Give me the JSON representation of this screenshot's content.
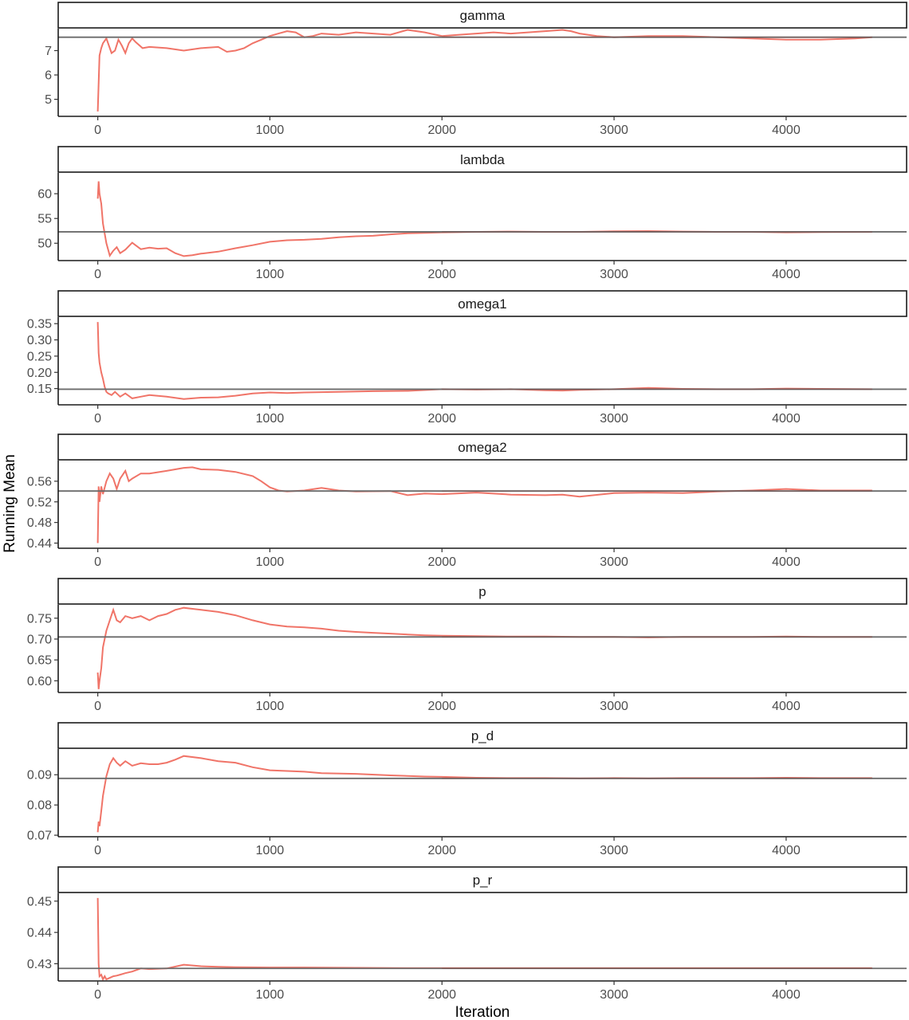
{
  "chart_data": {
    "type": "line",
    "xlabel": "Iteration",
    "ylabel": "Running Mean",
    "grid": false,
    "x_ticks": [
      0,
      1000,
      2000,
      3000,
      4000
    ],
    "xlim": [
      -230,
      4700
    ],
    "series_color": "#f8766d",
    "reference_color": "#808080",
    "panels": [
      {
        "name": "gamma",
        "ylim": [
          4.3,
          7.9
        ],
        "y_ticks": [
          5,
          6,
          7
        ],
        "y_tick_labels": [
          "5",
          "6",
          "7"
        ],
        "reference": 7.55,
        "x": [
          0,
          10,
          20,
          30,
          50,
          80,
          100,
          120,
          140,
          160,
          180,
          200,
          220,
          260,
          300,
          400,
          500,
          600,
          700,
          750,
          800,
          850,
          900,
          950,
          1000,
          1050,
          1100,
          1150,
          1200,
          1250,
          1300,
          1400,
          1500,
          1600,
          1700,
          1800,
          1900,
          2000,
          2100,
          2200,
          2300,
          2400,
          2500,
          2600,
          2700,
          2750,
          2800,
          2900,
          3000,
          3200,
          3400,
          3600,
          3800,
          4000,
          4200,
          4400,
          4500
        ],
        "values": [
          4.5,
          6.8,
          7.1,
          7.3,
          7.5,
          6.9,
          7.0,
          7.45,
          7.2,
          6.9,
          7.3,
          7.5,
          7.35,
          7.1,
          7.15,
          7.1,
          7.0,
          7.1,
          7.15,
          6.95,
          7.0,
          7.1,
          7.3,
          7.45,
          7.6,
          7.7,
          7.8,
          7.75,
          7.55,
          7.6,
          7.7,
          7.65,
          7.75,
          7.7,
          7.65,
          7.85,
          7.75,
          7.6,
          7.65,
          7.7,
          7.75,
          7.7,
          7.75,
          7.8,
          7.85,
          7.8,
          7.7,
          7.6,
          7.55,
          7.6,
          7.6,
          7.55,
          7.5,
          7.45,
          7.45,
          7.5,
          7.55
        ]
      },
      {
        "name": "lambda",
        "ylim": [
          46.5,
          64.2
        ],
        "y_ticks": [
          50,
          55,
          60
        ],
        "y_tick_labels": [
          "50",
          "55",
          "60"
        ],
        "reference": 52.3,
        "x": [
          0,
          5,
          10,
          20,
          30,
          50,
          70,
          90,
          110,
          130,
          160,
          200,
          250,
          300,
          350,
          400,
          450,
          500,
          550,
          600,
          700,
          800,
          900,
          1000,
          1100,
          1200,
          1300,
          1400,
          1500,
          1600,
          1700,
          1800,
          1900,
          2000,
          2200,
          2400,
          2600,
          2800,
          3000,
          3200,
          3400,
          3600,
          3800,
          4000,
          4200,
          4500
        ],
        "values": [
          59,
          62.5,
          60,
          58,
          54,
          50,
          47.5,
          48.5,
          49.2,
          48,
          48.7,
          50.1,
          48.8,
          49.1,
          48.9,
          49.0,
          48.0,
          47.4,
          47.6,
          47.9,
          48.3,
          49.0,
          49.6,
          50.3,
          50.6,
          50.7,
          50.9,
          51.2,
          51.4,
          51.5,
          51.8,
          52.0,
          52.1,
          52.2,
          52.3,
          52.35,
          52.3,
          52.3,
          52.4,
          52.45,
          52.35,
          52.3,
          52.3,
          52.2,
          52.25,
          52.3
        ]
      },
      {
        "name": "omega1",
        "ylim": [
          0.1,
          0.37
        ],
        "y_ticks": [
          0.15,
          0.2,
          0.25,
          0.3,
          0.35
        ],
        "y_tick_labels": [
          "0.15",
          "0.20",
          "0.25",
          "0.30",
          "0.35"
        ],
        "reference": 0.148,
        "x": [
          0,
          5,
          10,
          20,
          30,
          40,
          50,
          60,
          80,
          100,
          130,
          160,
          200,
          250,
          300,
          400,
          500,
          600,
          700,
          800,
          900,
          1000,
          1100,
          1200,
          1400,
          1600,
          1800,
          2000,
          2200,
          2400,
          2600,
          2700,
          2800,
          3000,
          3200,
          3400,
          3600,
          3800,
          4000,
          4200,
          4500
        ],
        "values": [
          0.355,
          0.26,
          0.23,
          0.2,
          0.18,
          0.155,
          0.14,
          0.135,
          0.13,
          0.14,
          0.125,
          0.135,
          0.12,
          0.125,
          0.13,
          0.125,
          0.118,
          0.122,
          0.123,
          0.128,
          0.135,
          0.138,
          0.136,
          0.138,
          0.14,
          0.142,
          0.143,
          0.148,
          0.147,
          0.148,
          0.145,
          0.144,
          0.146,
          0.148,
          0.152,
          0.149,
          0.148,
          0.148,
          0.15,
          0.149,
          0.148
        ]
      },
      {
        "name": "omega2",
        "ylim": [
          0.43,
          0.6
        ],
        "y_ticks": [
          0.44,
          0.48,
          0.52,
          0.56
        ],
        "y_tick_labels": [
          "0.44",
          "0.48",
          "0.52",
          "0.56"
        ],
        "reference": 0.541,
        "x": [
          0,
          5,
          10,
          20,
          30,
          50,
          70,
          90,
          110,
          130,
          160,
          180,
          200,
          250,
          300,
          400,
          500,
          550,
          600,
          700,
          800,
          900,
          950,
          1000,
          1050,
          1100,
          1200,
          1300,
          1400,
          1500,
          1700,
          1800,
          1900,
          2000,
          2200,
          2400,
          2600,
          2700,
          2800,
          3000,
          3200,
          3400,
          3600,
          3800,
          4000,
          4200,
          4500
        ],
        "values": [
          0.44,
          0.55,
          0.52,
          0.55,
          0.535,
          0.56,
          0.575,
          0.565,
          0.545,
          0.565,
          0.58,
          0.56,
          0.565,
          0.575,
          0.575,
          0.58,
          0.586,
          0.587,
          0.583,
          0.582,
          0.578,
          0.57,
          0.56,
          0.548,
          0.542,
          0.54,
          0.542,
          0.547,
          0.542,
          0.54,
          0.541,
          0.533,
          0.536,
          0.535,
          0.538,
          0.534,
          0.533,
          0.534,
          0.53,
          0.537,
          0.538,
          0.537,
          0.54,
          0.542,
          0.545,
          0.542,
          0.542
        ]
      },
      {
        "name": "p",
        "ylim": [
          0.572,
          0.782
        ],
        "y_ticks": [
          0.6,
          0.65,
          0.7,
          0.75
        ],
        "y_tick_labels": [
          "0.60",
          "0.65",
          "0.70",
          "0.75"
        ],
        "reference": 0.705,
        "x": [
          0,
          5,
          10,
          20,
          30,
          50,
          70,
          90,
          110,
          130,
          160,
          200,
          250,
          300,
          350,
          400,
          450,
          500,
          600,
          700,
          800,
          900,
          1000,
          1100,
          1200,
          1300,
          1400,
          1500,
          1600,
          1700,
          1800,
          1900,
          2000,
          2200,
          2400,
          2600,
          2800,
          3000,
          3200,
          3400,
          3600,
          3800,
          4000,
          4200,
          4500
        ],
        "values": [
          0.62,
          0.58,
          0.6,
          0.63,
          0.68,
          0.72,
          0.745,
          0.77,
          0.745,
          0.74,
          0.755,
          0.75,
          0.755,
          0.745,
          0.755,
          0.76,
          0.77,
          0.775,
          0.77,
          0.765,
          0.757,
          0.745,
          0.735,
          0.73,
          0.728,
          0.725,
          0.72,
          0.717,
          0.715,
          0.713,
          0.711,
          0.709,
          0.708,
          0.707,
          0.706,
          0.706,
          0.705,
          0.705,
          0.704,
          0.705,
          0.705,
          0.705,
          0.706,
          0.705,
          0.705
        ]
      },
      {
        "name": "p_d",
        "ylim": [
          0.0695,
          0.0985
        ],
        "y_ticks": [
          0.07,
          0.08,
          0.09
        ],
        "y_tick_labels": [
          "0.07",
          "0.08",
          "0.09"
        ],
        "reference": 0.0888,
        "x": [
          0,
          5,
          10,
          20,
          30,
          50,
          70,
          90,
          110,
          130,
          160,
          200,
          250,
          300,
          350,
          400,
          450,
          500,
          600,
          700,
          800,
          900,
          1000,
          1200,
          1300,
          1500,
          1700,
          1900,
          2000,
          2200,
          2400,
          2600,
          2800,
          3000,
          3200,
          3400,
          3600,
          3800,
          4000,
          4200,
          4500
        ],
        "values": [
          0.071,
          0.0745,
          0.073,
          0.078,
          0.083,
          0.0895,
          0.0935,
          0.0955,
          0.094,
          0.093,
          0.0945,
          0.093,
          0.0938,
          0.0935,
          0.0935,
          0.094,
          0.095,
          0.0962,
          0.0955,
          0.0945,
          0.094,
          0.0925,
          0.0915,
          0.091,
          0.0905,
          0.0903,
          0.0898,
          0.0894,
          0.0893,
          0.089,
          0.0889,
          0.0889,
          0.0888,
          0.0889,
          0.0888,
          0.0889,
          0.0889,
          0.0889,
          0.089,
          0.0889,
          0.0889
        ]
      },
      {
        "name": "p_r",
        "ylim": [
          0.4245,
          0.4525
        ],
        "y_ticks": [
          0.43,
          0.44,
          0.45
        ],
        "y_tick_labels": [
          "0.43",
          "0.44",
          "0.45"
        ],
        "reference": 0.4285,
        "x": [
          0,
          5,
          10,
          20,
          30,
          40,
          50,
          70,
          90,
          110,
          130,
          160,
          200,
          250,
          300,
          400,
          500,
          600,
          700,
          800,
          1000,
          1200,
          1500,
          1800,
          2000,
          2400,
          2800,
          3200,
          3600,
          4000,
          4500
        ],
        "values": [
          0.451,
          0.43,
          0.426,
          0.4265,
          0.425,
          0.426,
          0.425,
          0.4255,
          0.426,
          0.4262,
          0.4265,
          0.427,
          0.4275,
          0.4285,
          0.4283,
          0.4285,
          0.4297,
          0.4292,
          0.429,
          0.4289,
          0.4288,
          0.4288,
          0.4287,
          0.4286,
          0.4286,
          0.4286,
          0.4286,
          0.4286,
          0.4286,
          0.4286,
          0.4286
        ]
      }
    ]
  }
}
